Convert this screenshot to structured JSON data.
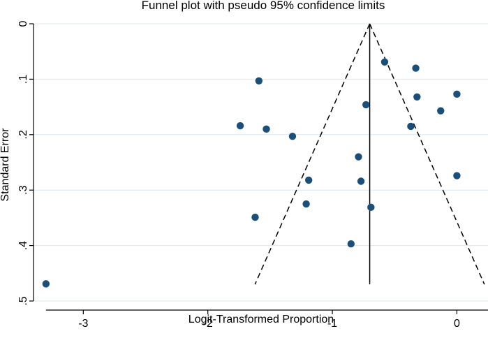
{
  "chart_data": {
    "type": "scatter",
    "title": "Funnel plot with pseudo 95% confidence limits",
    "xlabel": "Logit-Transformed Proportion",
    "ylabel": "Standard Error",
    "xlim": [
      -3.4,
      0.25
    ],
    "ylim": [
      0,
      0.5
    ],
    "y_reversed": true,
    "x_ticks": [
      -3,
      -2,
      -1,
      0
    ],
    "x_tick_labels": [
      "-3",
      "-2",
      "-1",
      "0"
    ],
    "y_ticks": [
      0,
      0.1,
      0.2,
      0.3,
      0.4,
      0.5
    ],
    "y_tick_labels": [
      "0",
      ".1",
      ".2",
      ".3",
      ".4",
      ".5"
    ],
    "grid": "horizontal",
    "pooled_estimate": -0.7,
    "funnel_se_max": 0.47,
    "points": [
      {
        "x": -0.58,
        "y": 0.069
      },
      {
        "x": -0.33,
        "y": 0.08
      },
      {
        "x": -1.59,
        "y": 0.103
      },
      {
        "x": 0.0,
        "y": 0.127
      },
      {
        "x": -0.32,
        "y": 0.132
      },
      {
        "x": -0.73,
        "y": 0.146
      },
      {
        "x": -0.13,
        "y": 0.157
      },
      {
        "x": -1.74,
        "y": 0.184
      },
      {
        "x": -0.37,
        "y": 0.185
      },
      {
        "x": -1.53,
        "y": 0.19
      },
      {
        "x": -1.32,
        "y": 0.203
      },
      {
        "x": -0.79,
        "y": 0.24
      },
      {
        "x": 0.0,
        "y": 0.274
      },
      {
        "x": -1.19,
        "y": 0.282
      },
      {
        "x": -0.77,
        "y": 0.284
      },
      {
        "x": -1.21,
        "y": 0.325
      },
      {
        "x": -0.69,
        "y": 0.331
      },
      {
        "x": -1.62,
        "y": 0.349
      },
      {
        "x": -0.85,
        "y": 0.397
      },
      {
        "x": -3.3,
        "y": 0.469
      }
    ],
    "colors": {
      "point": "#1a4f7a",
      "grid": "#dce8ee",
      "axis": "#000000"
    }
  }
}
